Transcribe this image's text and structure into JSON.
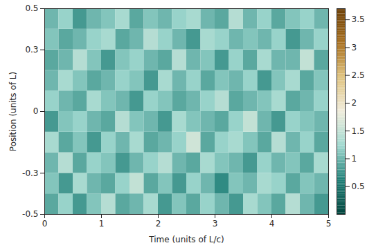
{
  "chart_data": {
    "type": "heatmap",
    "x_label": "Time (units of L/c)",
    "y_label": "Position (units of L)",
    "xlim": [
      0,
      5
    ],
    "xticks": [
      0,
      1,
      2,
      3,
      4,
      5
    ],
    "ylim": [
      -0.5,
      0.5
    ],
    "yticks": [
      -0.5,
      -0.3,
      0,
      0.3,
      0.5
    ],
    "x_edges": [
      0,
      0.25,
      0.5,
      0.75,
      1,
      1.25,
      1.5,
      1.75,
      2,
      2.25,
      2.5,
      2.75,
      3,
      3.25,
      3.5,
      3.75,
      4,
      4.25,
      4.5,
      4.75,
      5
    ],
    "y_edges": [
      -0.5,
      -0.4,
      -0.3,
      -0.2,
      -0.1,
      0,
      0.1,
      0.2,
      0.3,
      0.4,
      0.5
    ],
    "cells": [
      [
        0.9,
        1.2,
        0.8,
        1.1,
        1.4,
        0.9,
        1.0,
        1.3,
        0.8,
        1.1,
        0.9,
        1.2,
        1.0,
        0.8,
        1.3,
        1.1,
        0.9,
        1.4,
        1.0,
        0.8
      ],
      [
        1.1,
        0.8,
        1.3,
        1.0,
        0.9,
        1.2,
        1.5,
        0.9,
        1.1,
        0.8,
        1.2,
        1.0,
        0.7,
        1.1,
        1.0,
        1.3,
        1.2,
        0.9,
        1.1,
        1.0
      ],
      [
        1.0,
        1.4,
        0.9,
        1.2,
        1.1,
        0.8,
        1.0,
        1.2,
        1.4,
        1.0,
        0.9,
        1.3,
        1.1,
        1.0,
        0.8,
        1.2,
        1.0,
        1.1,
        0.9,
        1.3
      ],
      [
        1.3,
        0.9,
        1.1,
        0.8,
        1.2,
        1.0,
        1.3,
        0.9,
        1.0,
        1.2,
        1.6,
        0.9,
        1.2,
        1.3,
        1.1,
        0.9,
        1.4,
        1.0,
        1.2,
        0.9
      ],
      [
        0.8,
        1.1,
        1.2,
        1.0,
        0.9,
        1.4,
        1.1,
        1.0,
        0.8,
        1.3,
        1.1,
        1.0,
        0.9,
        1.2,
        1.5,
        1.0,
        0.8,
        1.2,
        1.1,
        1.0
      ],
      [
        1.2,
        1.0,
        0.9,
        1.3,
        1.1,
        1.0,
        0.8,
        1.2,
        1.1,
        0.9,
        1.0,
        1.2,
        1.4,
        0.9,
        1.0,
        1.1,
        1.3,
        0.9,
        1.0,
        1.2
      ],
      [
        1.0,
        1.3,
        1.1,
        0.9,
        1.0,
        1.2,
        1.1,
        0.8,
        1.3,
        1.0,
        1.2,
        0.9,
        1.1,
        1.0,
        1.2,
        0.8,
        1.1,
        1.3,
        0.9,
        1.1
      ],
      [
        0.9,
        1.0,
        1.4,
        1.1,
        0.8,
        1.1,
        1.2,
        1.0,
        0.9,
        1.4,
        1.0,
        1.1,
        0.8,
        1.2,
        0.9,
        1.3,
        1.0,
        1.0,
        1.5,
        0.9
      ],
      [
        1.1,
        0.9,
        1.0,
        1.2,
        1.3,
        0.9,
        1.0,
        1.4,
        1.2,
        1.0,
        0.8,
        1.3,
        1.2,
        1.0,
        1.1,
        1.0,
        1.2,
        0.8,
        1.0,
        1.2
      ],
      [
        1.0,
        1.2,
        0.8,
        1.0,
        1.1,
        1.3,
        0.9,
        1.1,
        1.0,
        1.2,
        1.3,
        1.0,
        0.9,
        1.4,
        1.0,
        1.2,
        0.9,
        1.1,
        1.2,
        1.0
      ]
    ],
    "colorbar": {
      "range": [
        0,
        3.7
      ],
      "ticks": [
        0.5,
        1,
        1.5,
        2,
        2.5,
        3,
        3.5
      ],
      "colors": [
        "#00443c",
        "#1f7f77",
        "#9fd8cf",
        "#f0ecdc",
        "#dfc27d",
        "#a86f1e",
        "#6b3f06"
      ]
    }
  }
}
